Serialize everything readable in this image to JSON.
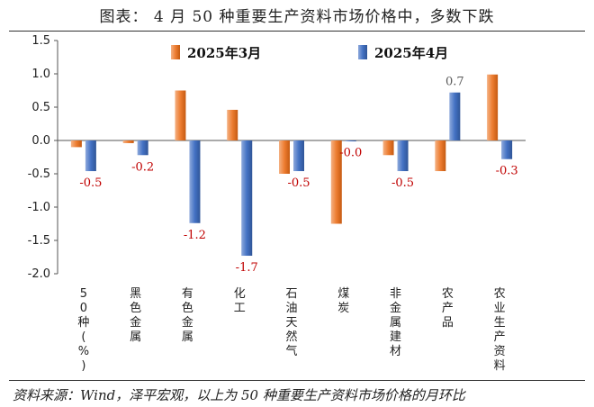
{
  "page": {
    "title": "图表： 4 月 50 种重要生产资料市场价格中，多数下跌",
    "source": "资料来源：Wind，泽平宏观，以上为 50 种重要生产资料市场价格的月环比"
  },
  "chart_data": {
    "type": "bar",
    "title": "",
    "xlabel": "",
    "ylabel": "",
    "ylim": [
      -2.0,
      1.5
    ],
    "yticks": [
      1.5,
      1.0,
      0.5,
      0.0,
      -0.5,
      -1.0,
      -1.5,
      -2.0
    ],
    "ytick_labels": [
      "1.5",
      "1.0",
      "0.5",
      "0.0",
      "-0.5",
      "-1.0",
      "-1.5",
      "-2.0"
    ],
    "grid": false,
    "legend_position": "top",
    "categories": [
      "50种(%)",
      "黑色金属",
      "有色金属",
      "化工",
      "石油天然气",
      "煤炭",
      "非金属建材",
      "农产品",
      "农业生产资料"
    ],
    "series": [
      {
        "name": "2025年3月",
        "color": "#ED7D31",
        "values": [
          -0.1,
          -0.04,
          0.75,
          0.46,
          -0.5,
          -1.25,
          -0.22,
          -0.46,
          0.99
        ]
      },
      {
        "name": "2025年4月",
        "color": "#4472C4",
        "values": [
          -0.46,
          -0.22,
          -1.24,
          -1.73,
          -0.46,
          -0.01,
          -0.46,
          0.72,
          -0.28
        ],
        "data_labels": [
          "-0.5",
          "-0.2",
          "-1.2",
          "-1.7",
          "-0.5",
          "-0.0",
          "-0.5",
          "0.7",
          "-0.3"
        ]
      }
    ],
    "label_colors": {
      "negative": "#C00000",
      "positive": "#595959"
    }
  }
}
